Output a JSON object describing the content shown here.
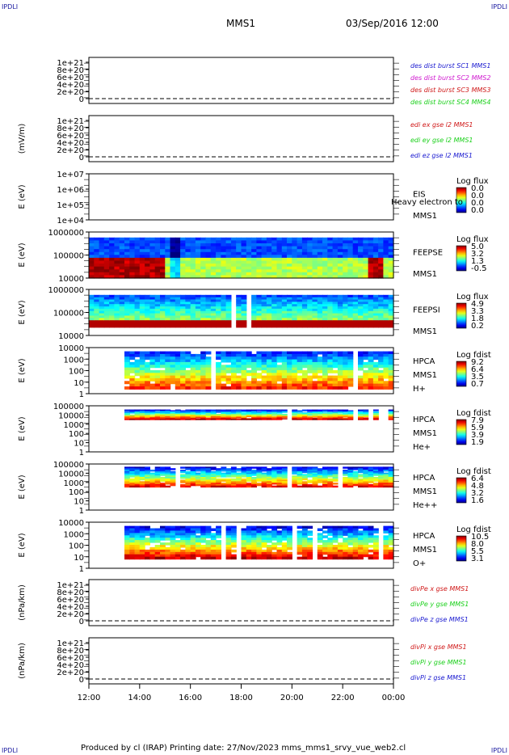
{
  "corner_label": "IPDLI",
  "header": {
    "spacecraft": "MMS1",
    "datetime": "03/Sep/2016 12:00"
  },
  "footer": "Produced by cl (IRAP)   Printing date: 27/Nov/2023   mms_mms1_srvy_vue_web2.cl",
  "chart_data": [
    {
      "id": "p1",
      "type": "line",
      "ylabel": "",
      "yticks": [
        "1e+21",
        "8e+20",
        "6e+20",
        "4e+20",
        "2e+20",
        "0"
      ],
      "series": [
        {
          "name": "des dist burst SC1 MMS1",
          "color": "#1a1ad0"
        },
        {
          "name": "des dist burst SC2 MMS2",
          "color": "#d01ad0"
        },
        {
          "name": "des dist burst SC3 MMS3",
          "color": "#d01a1a"
        },
        {
          "name": "des dist burst SC4 MMS4",
          "color": "#1ad01a"
        }
      ]
    },
    {
      "id": "p2",
      "type": "line",
      "ylabel": "(mV/m)",
      "yticks": [
        "1e+21",
        "8e+20",
        "6e+20",
        "4e+20",
        "2e+20",
        "0"
      ],
      "series": [
        {
          "name": "edi ex gse l2 MMS1",
          "color": "#d01a1a"
        },
        {
          "name": "edi ey gse l2 MMS1",
          "color": "#1ad01a"
        },
        {
          "name": "edi ez gse l2 MMS1",
          "color": "#1a1ad0"
        }
      ]
    },
    {
      "id": "p3",
      "type": "heatmap",
      "ylabel": "E (eV)",
      "yticks": [
        "1e+07",
        "1e+06",
        "1e+05",
        "1e+04"
      ],
      "labels": [
        "EIS",
        "MMS1"
      ],
      "overlay": "Heavy electron to",
      "cbar_title": "Log flux",
      "cbar_ticks": [
        "0.0",
        "0.0",
        "0.0",
        "0.0"
      ]
    },
    {
      "id": "p4",
      "type": "heatmap",
      "ylabel": "E (eV)",
      "yticks": [
        "1000000",
        "100000",
        "10000"
      ],
      "labels": [
        "FEEPSE",
        "MMS1"
      ],
      "cbar_title": "Log flux",
      "cbar_ticks": [
        "5.0",
        "3.2",
        "1.3",
        "-0.5"
      ]
    },
    {
      "id": "p5",
      "type": "heatmap",
      "ylabel": "E (eV)",
      "yticks": [
        "1000000",
        "100000",
        "10000"
      ],
      "labels": [
        "FEEPSI",
        "MMS1"
      ],
      "cbar_title": "Log flux",
      "cbar_ticks": [
        "4.9",
        "3.3",
        "1.8",
        "0.2"
      ]
    },
    {
      "id": "p6",
      "type": "heatmap",
      "ylabel": "E (eV)",
      "yticks": [
        "10000",
        "1000",
        "100",
        "10",
        "1"
      ],
      "labels": [
        "HPCA",
        "MMS1",
        "H+"
      ],
      "cbar_title": "Log fdist",
      "cbar_ticks": [
        "9.2",
        "6.4",
        "3.5",
        "0.7"
      ]
    },
    {
      "id": "p7",
      "type": "heatmap",
      "ylabel": "E (eV)",
      "yticks": [
        "100000",
        "10000",
        "1000",
        "100",
        "10",
        "1"
      ],
      "labels": [
        "HPCA",
        "MMS1",
        "He+"
      ],
      "cbar_title": "Log fdist",
      "cbar_ticks": [
        "7.9",
        "5.9",
        "3.9",
        "1.9"
      ]
    },
    {
      "id": "p8",
      "type": "heatmap",
      "ylabel": "E (eV)",
      "yticks": [
        "100000",
        "10000",
        "1000",
        "100",
        "10",
        "1"
      ],
      "labels": [
        "HPCA",
        "MMS1",
        "He++"
      ],
      "cbar_title": "Log fdist",
      "cbar_ticks": [
        "6.4",
        "4.8",
        "3.2",
        "1.6"
      ]
    },
    {
      "id": "p9",
      "type": "heatmap",
      "ylabel": "E (eV)",
      "yticks": [
        "10000",
        "1000",
        "100",
        "10",
        "1"
      ],
      "labels": [
        "HPCA",
        "MMS1",
        "O+"
      ],
      "cbar_title": "Log fdist",
      "cbar_ticks": [
        "10.5",
        "8.0",
        "5.5",
        "3.1"
      ]
    },
    {
      "id": "p10",
      "type": "line",
      "ylabel": "(nPa/km)",
      "yticks": [
        "1e+21",
        "8e+20",
        "6e+20",
        "4e+20",
        "2e+20",
        "0"
      ],
      "series": [
        {
          "name": "divPe x gse MMS1",
          "color": "#d01a1a"
        },
        {
          "name": "divPe y gse MMS1",
          "color": "#1ad01a"
        },
        {
          "name": "divPe z gse MMS1",
          "color": "#1a1ad0"
        }
      ]
    },
    {
      "id": "p11",
      "type": "line",
      "ylabel": "(nPa/km)",
      "yticks": [
        "1e+21",
        "8e+20",
        "6e+20",
        "4e+20",
        "2e+20",
        "0"
      ],
      "series": [
        {
          "name": "divPi x gse MMS1",
          "color": "#d01a1a"
        },
        {
          "name": "divPi y gse MMS1",
          "color": "#1ad01a"
        },
        {
          "name": "divPi z gse MMS1",
          "color": "#1a1ad0"
        }
      ]
    }
  ],
  "x_axis": {
    "ticks": [
      "12:00",
      "14:00",
      "16:00",
      "18:00",
      "20:00",
      "22:00",
      "00:00"
    ]
  }
}
